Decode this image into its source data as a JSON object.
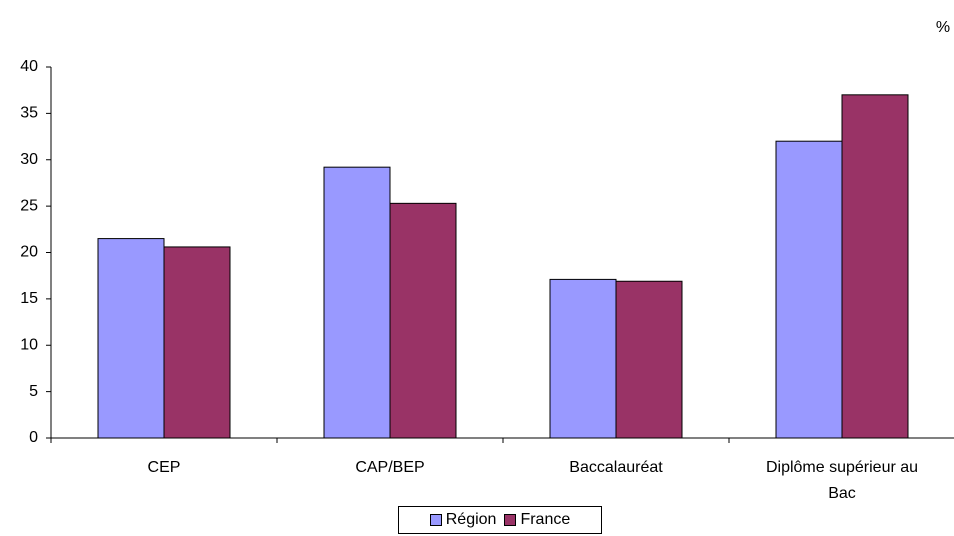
{
  "chart_data": {
    "type": "bar",
    "unit": "%",
    "categories": [
      "CEP",
      "CAP/BEP",
      "Baccalauréat",
      "Diplôme supérieur au Bac"
    ],
    "series": [
      {
        "name": "Région",
        "color": "#9999ff",
        "values": [
          21.5,
          29.2,
          17.1,
          32.0
        ]
      },
      {
        "name": "France",
        "color": "#993366",
        "values": [
          20.6,
          25.3,
          16.9,
          37.0
        ]
      }
    ],
    "ylim": [
      0,
      40
    ],
    "yticks": [
      0,
      5,
      10,
      15,
      20,
      25,
      30,
      35,
      40
    ],
    "grid": false,
    "legend": "bottom"
  }
}
